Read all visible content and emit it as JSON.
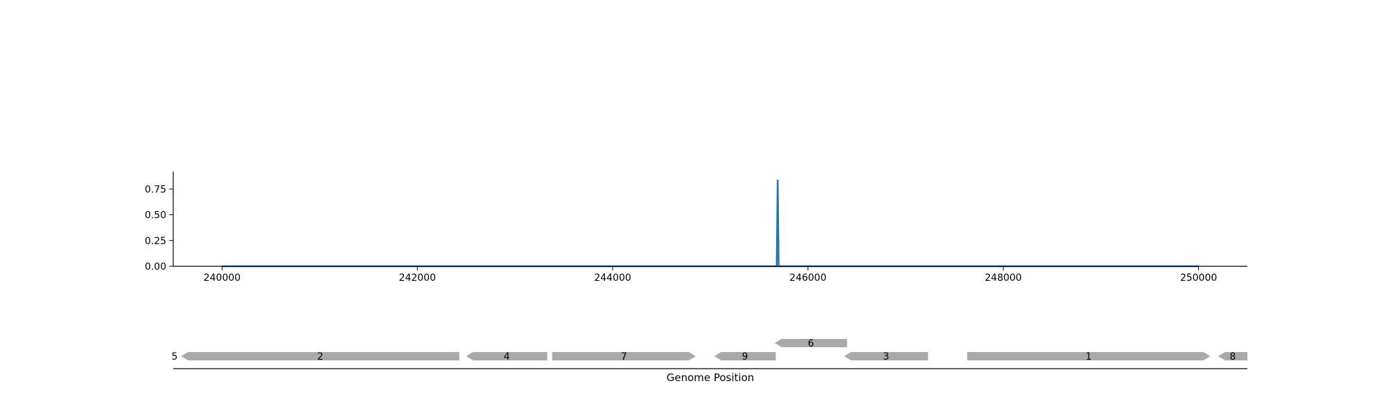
{
  "chart_data": [
    {
      "type": "line",
      "title": "",
      "xlabel": "",
      "ylabel": "",
      "xlim": [
        239500,
        250500
      ],
      "ylim": [
        0,
        0.92
      ],
      "x_ticks": [
        240000,
        242000,
        244000,
        246000,
        248000,
        250000
      ],
      "x_tick_labels": [
        "240000",
        "242000",
        "244000",
        "246000",
        "248000",
        "250000"
      ],
      "y_ticks": [
        0,
        0.25,
        0.5,
        0.75
      ],
      "y_tick_labels": [
        "0.00",
        "0.25",
        "0.50",
        "0.75"
      ],
      "grid": false,
      "legend": "none",
      "color": "#1f77b4",
      "series": [
        {
          "x": [
            240000,
            245680,
            245690,
            245700,
            250000
          ],
          "y": [
            0,
            0,
            0.84,
            0,
            0
          ]
        }
      ]
    },
    {
      "type": "gene-track",
      "xlabel": "Genome Position",
      "xlim": [
        239500,
        250500
      ],
      "color": "#a9a9a9",
      "genes": [
        {
          "label": "5",
          "start": 239500,
          "end": 239500,
          "strand": "-",
          "row": 0
        },
        {
          "label": "2",
          "start": 239580,
          "end": 242430,
          "strand": "-",
          "row": 0
        },
        {
          "label": "4",
          "start": 242500,
          "end": 243330,
          "strand": "-",
          "row": 0
        },
        {
          "label": "7",
          "start": 243380,
          "end": 244850,
          "strand": "+",
          "row": 0
        },
        {
          "label": "9",
          "start": 245040,
          "end": 245670,
          "strand": "-",
          "row": 0
        },
        {
          "label": "6",
          "start": 245660,
          "end": 246400,
          "strand": "-",
          "row": 1
        },
        {
          "label": "3",
          "start": 246370,
          "end": 247230,
          "strand": "-",
          "row": 0
        },
        {
          "label": "1",
          "start": 247630,
          "end": 250120,
          "strand": "+",
          "row": 0
        },
        {
          "label": "8",
          "start": 250200,
          "end": 250500,
          "strand": "-",
          "row": 0
        }
      ]
    }
  ]
}
